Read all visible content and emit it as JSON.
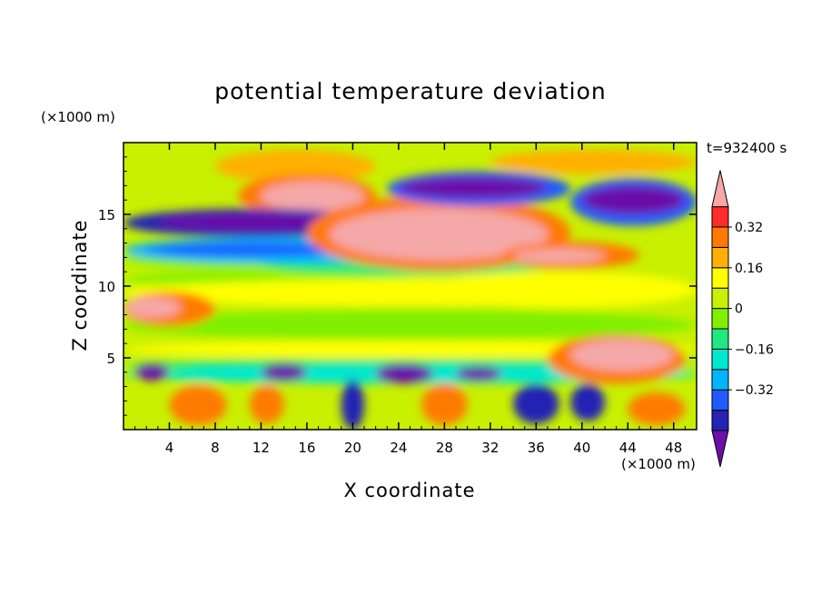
{
  "chart_data": {
    "type": "heatmap",
    "title": "potential temperature deviation",
    "xlabel": "X coordinate",
    "ylabel": "Z coordinate",
    "x_unit": "(×1000 m)",
    "y_unit": "(×1000 m)",
    "time_label": "t=932400 s",
    "xlim": [
      0,
      50
    ],
    "ylim": [
      0,
      20
    ],
    "x_ticks": [
      4,
      8,
      12,
      16,
      20,
      24,
      28,
      32,
      36,
      40,
      44,
      48
    ],
    "y_ticks": [
      5,
      10,
      15
    ],
    "colorbar": {
      "levels": [
        -0.48,
        -0.4,
        -0.32,
        -0.24,
        -0.16,
        -0.08,
        0,
        0.08,
        0.16,
        0.24,
        0.32,
        0.4,
        0.48
      ],
      "labels": [
        "0.32",
        "0.16",
        "0",
        "−0.16",
        "−0.32"
      ],
      "label_values": [
        0.32,
        0.16,
        0,
        -0.16,
        -0.32
      ],
      "colors": [
        "#6a0fa8",
        "#2323b5",
        "#1f5cff",
        "#00b4ff",
        "#00e8d0",
        "#20e880",
        "#80f000",
        "#c8f000",
        "#ffff00",
        "#ffb000",
        "#ff7a00",
        "#ff2a2a",
        "#f5a8a8"
      ]
    },
    "features": [
      {
        "value": 0.5,
        "x": [
          12,
          20
        ],
        "z": [
          14.5,
          17.5
        ]
      },
      {
        "value": 0.5,
        "x": [
          15,
          38
        ],
        "z": [
          11,
          16.5
        ]
      },
      {
        "value": 0.5,
        "x": [
          0,
          6
        ],
        "z": [
          7.5,
          9.5
        ]
      },
      {
        "value": 0.5,
        "x": [
          33,
          42
        ],
        "z": [
          11.5,
          13
        ]
      },
      {
        "value": 0.5,
        "x": [
          38,
          49
        ],
        "z": [
          3,
          6.5
        ]
      },
      {
        "value": -0.5,
        "x": [
          0,
          22
        ],
        "z": [
          13,
          16
        ]
      },
      {
        "value": -0.5,
        "x": [
          24,
          38
        ],
        "z": [
          15.5,
          18
        ]
      },
      {
        "value": -0.5,
        "x": [
          40,
          50
        ],
        "z": [
          14,
          17.5
        ]
      },
      {
        "value": -0.35,
        "x": [
          0,
          26
        ],
        "z": [
          11.5,
          13.5
        ]
      },
      {
        "value": -0.2,
        "x": [
          0,
          50
        ],
        "z": [
          3,
          4.5
        ]
      }
    ]
  }
}
